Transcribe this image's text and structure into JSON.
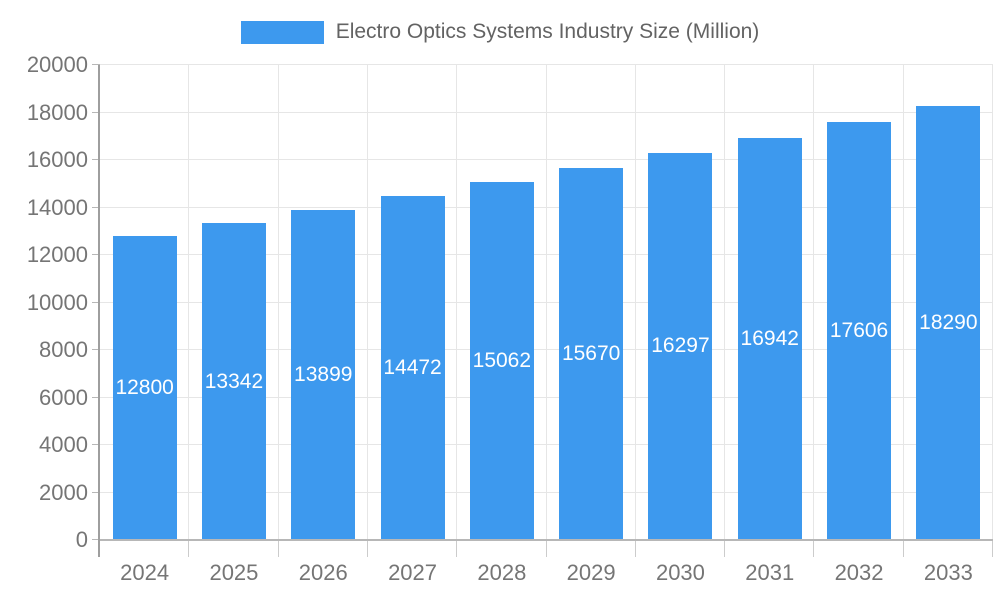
{
  "chart_data": {
    "type": "bar",
    "title": "Electro Optics Systems Industry Size (Million)",
    "categories": [
      "2024",
      "2025",
      "2026",
      "2027",
      "2028",
      "2029",
      "2030",
      "2031",
      "2032",
      "2033"
    ],
    "series": [
      {
        "name": "Electro Optics Systems Industry Size (Million)",
        "values": [
          12800,
          13342,
          13899,
          14472,
          15062,
          15670,
          16297,
          16942,
          17606,
          18290
        ]
      }
    ],
    "bar_value_labels": [
      "12800",
      "13342",
      "13899",
      "14472",
      "15062",
      "15670",
      "16297",
      "16942",
      "17606",
      "18290"
    ],
    "xlabel": "",
    "ylabel": "",
    "ylim": [
      0,
      20000
    ],
    "ytick_step": 2000,
    "ytick_labels": [
      "0",
      "2000",
      "4000",
      "6000",
      "8000",
      "10000",
      "12000",
      "14000",
      "16000",
      "18000",
      "20000"
    ],
    "grid": "horizontal and vertical",
    "legend_position": "top",
    "colors": {
      "bar": "#3D99EE",
      "bar_label_text": "#ffffff",
      "axis_text": "#757575",
      "legend_text": "#636363",
      "gridline": "#e6e6e6",
      "axis_line": "#9e9e9e",
      "baseline": "#b7b7b7",
      "tick": "#cccccc"
    }
  }
}
